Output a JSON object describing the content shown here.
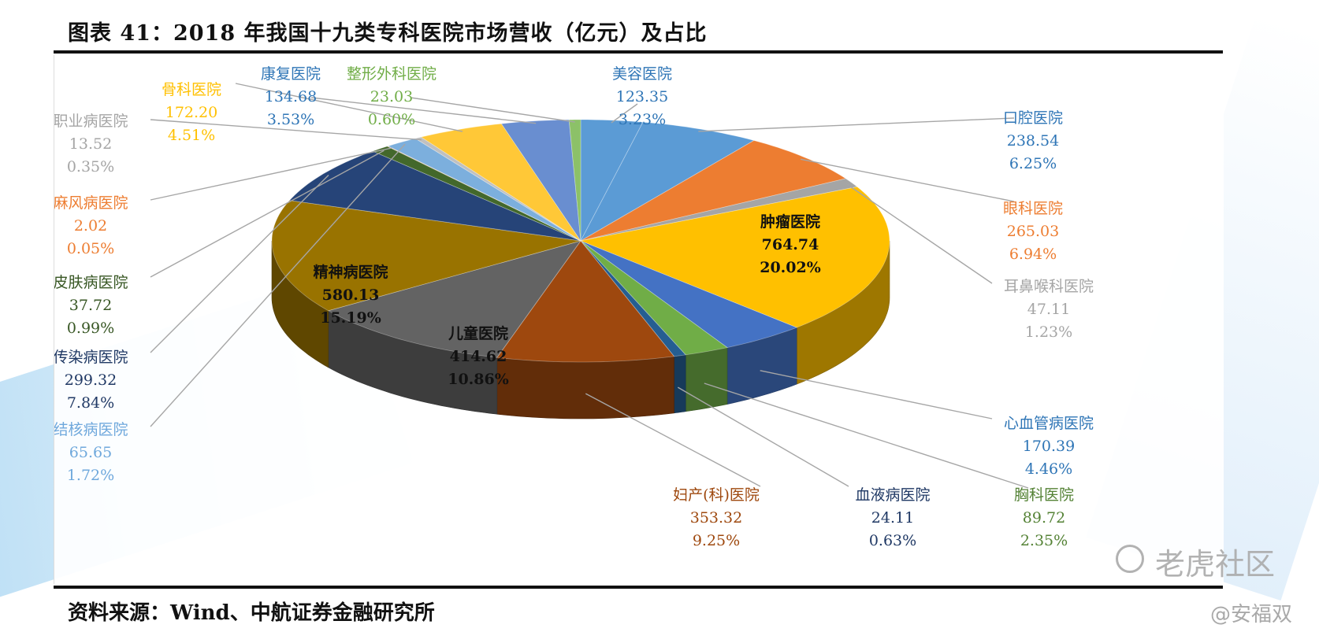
{
  "figure": {
    "title": "图表 41：2018 年我国十九类专科医院市场营收（亿元）及占比",
    "source": "资料来源：Wind、中航证券金融研究所"
  },
  "watermark": {
    "brand": "老虎社区",
    "user": "@安福双"
  },
  "chart_data": {
    "type": "pie",
    "style": "3d-exploded-slices-with-leader-labels",
    "title": "",
    "unit": "亿元",
    "slices": [
      {
        "name": "美容医院",
        "value": 123.35,
        "percent": "3.23%",
        "value_text": "123.35",
        "color": "#5b9bd5",
        "label_color": "#2e75b6"
      },
      {
        "name": "口腔医院",
        "value": 238.54,
        "percent": "6.25%",
        "value_text": "238.54",
        "color": "#5b9bd5",
        "label_color": "#2e75b6"
      },
      {
        "name": "眼科医院",
        "value": 265.03,
        "percent": "6.94%",
        "value_text": "265.03",
        "color": "#ed7d31",
        "label_color": "#ed7d31"
      },
      {
        "name": "耳鼻喉科医院",
        "value": 47.11,
        "percent": "1.23%",
        "value_text": "47.11",
        "color": "#a5a5a5",
        "label_color": "#a5a5a5"
      },
      {
        "name": "肿瘤医院",
        "value": 764.74,
        "percent": "20.02%",
        "value_text": "764.74",
        "color": "#ffc000",
        "label_color": "#111111"
      },
      {
        "name": "心血管病医院",
        "value": 170.39,
        "percent": "4.46%",
        "value_text": "170.39",
        "color": "#4472c4",
        "label_color": "#2e75b6"
      },
      {
        "name": "胸科医院",
        "value": 89.72,
        "percent": "2.35%",
        "value_text": "89.72",
        "color": "#70ad47",
        "label_color": "#548235"
      },
      {
        "name": "血液病医院",
        "value": 24.11,
        "percent": "0.63%",
        "value_text": "24.11",
        "color": "#255e91",
        "label_color": "#1f3864"
      },
      {
        "name": "妇产(科)医院",
        "value": 353.32,
        "percent": "9.25%",
        "value_text": "353.32",
        "color": "#9e480e",
        "label_color": "#9e480e"
      },
      {
        "name": "儿童医院",
        "value": 414.62,
        "percent": "10.86%",
        "value_text": "414.62",
        "color": "#636363",
        "label_color": "#111111"
      },
      {
        "name": "精神病医院",
        "value": 580.13,
        "percent": "15.19%",
        "value_text": "580.13",
        "color": "#997300",
        "label_color": "#111111"
      },
      {
        "name": "传染病医院",
        "value": 299.32,
        "percent": "7.84%",
        "value_text": "299.32",
        "color": "#264478",
        "label_color": "#1f3864"
      },
      {
        "name": "皮肤病医院",
        "value": 37.72,
        "percent": "0.99%",
        "value_text": "37.72",
        "color": "#43682b",
        "label_color": "#375623"
      },
      {
        "name": "麻风病医院",
        "value": 2.02,
        "percent": "0.05%",
        "value_text": "2.02",
        "color": "#f4b183",
        "label_color": "#ed7d31"
      },
      {
        "name": "结核病医院",
        "value": 65.65,
        "percent": "1.72%",
        "value_text": "65.65",
        "color": "#7cafdd",
        "label_color": "#6fa8dc"
      },
      {
        "name": "职业病医院",
        "value": 13.52,
        "percent": "0.35%",
        "value_text": "13.52",
        "color": "#c0c0c0",
        "label_color": "#a5a5a5"
      },
      {
        "name": "骨科医院",
        "value": 172.2,
        "percent": "4.51%",
        "value_text": "172.20",
        "color": "#ffc837",
        "label_color": "#ffc000"
      },
      {
        "name": "康复医院",
        "value": 134.68,
        "percent": "3.53%",
        "value_text": "134.68",
        "color": "#698ed0",
        "label_color": "#2e75b6"
      },
      {
        "name": "整形外科医院",
        "value": 23.03,
        "percent": "0.60%",
        "value_text": "23.03",
        "color": "#8cc168",
        "label_color": "#70ad47"
      }
    ]
  }
}
